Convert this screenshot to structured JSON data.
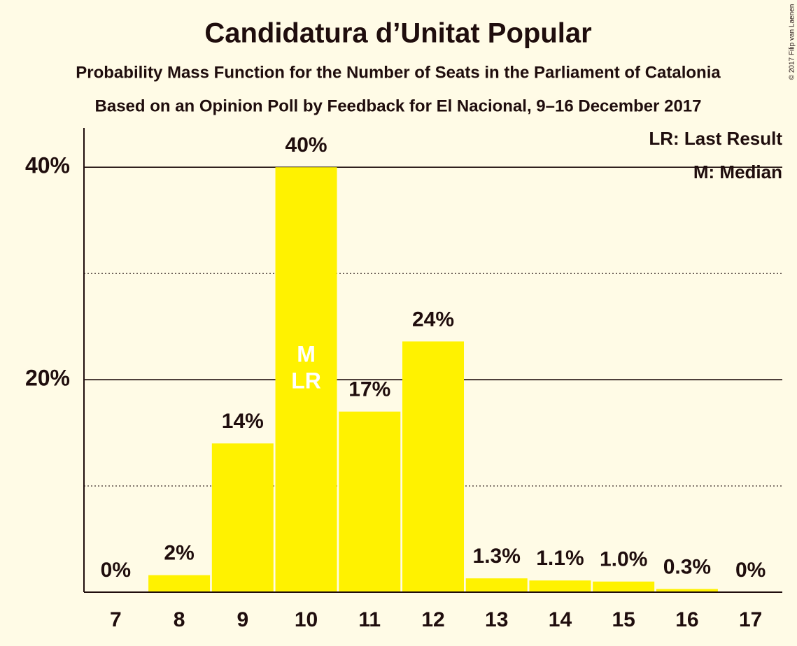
{
  "chart_data": {
    "type": "bar",
    "title": "Candidatura d’Unitat Popular",
    "subtitle": "Probability Mass Function for the Number of Seats in the Parliament of Catalonia",
    "subtitle2": "Based on an Opinion Poll by Feedback for El Nacional, 9–16 December 2017",
    "copyright": "© 2017 Filip van Laenen",
    "categories": [
      7,
      8,
      9,
      10,
      11,
      12,
      13,
      14,
      15,
      16,
      17
    ],
    "values": [
      0,
      1.6,
      14,
      40,
      17,
      23.6,
      1.3,
      1.1,
      1.0,
      0.3,
      0
    ],
    "value_labels": [
      "0%",
      "2%",
      "14%",
      "40%",
      "17%",
      "24%",
      "1.3%",
      "1.1%",
      "1.0%",
      "0.3%",
      "0%"
    ],
    "color": "#fff200",
    "ylim": [
      0,
      43.7
    ],
    "yticks": [
      {
        "value": 20,
        "label": "20%"
      },
      {
        "value": 40,
        "label": "40%"
      }
    ],
    "minor_yticks": [
      10,
      30
    ],
    "grid": true,
    "bar_annotations": [
      {
        "category": 10,
        "labels": [
          "M",
          "LR"
        ]
      }
    ],
    "legend": [
      "LR: Last Result",
      "M: Median"
    ]
  }
}
